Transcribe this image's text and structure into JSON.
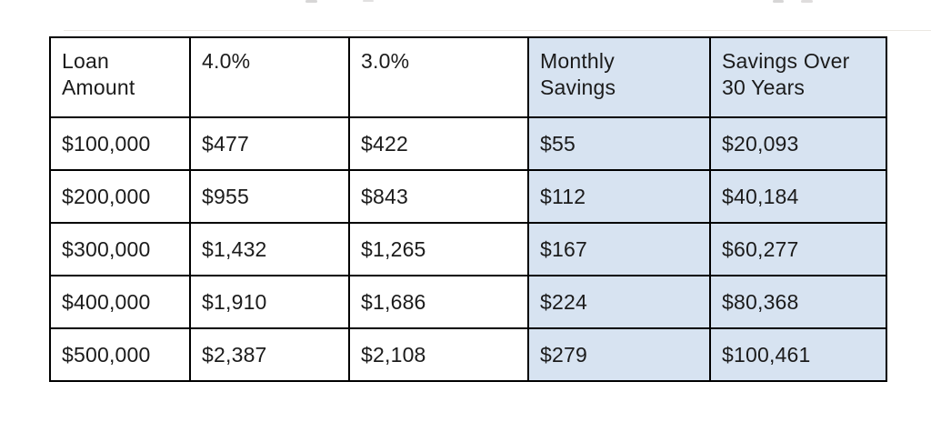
{
  "table": {
    "headers": [
      "Loan\nAmount",
      "4.0%",
      "3.0%",
      "Monthly\nSavings",
      "Savings Over\n30 Years"
    ],
    "rows": [
      [
        "$100,000",
        "$477",
        "$422",
        "$55",
        "$20,093"
      ],
      [
        "$200,000",
        "$955",
        "$843",
        "$112",
        "$40,184"
      ],
      [
        "$300,000",
        "$1,432",
        "$1,265",
        "$167",
        "$60,277"
      ],
      [
        "$400,000",
        "$1,910",
        "$1,686",
        "$224",
        "$80,368"
      ],
      [
        "$500,000",
        "$2,387",
        "$2,108",
        "$279",
        "$100,461"
      ]
    ],
    "highlight_color": "#d7e3f1",
    "border_color": "#000000",
    "text_color": "#1b1b1b"
  },
  "chart_data": {
    "type": "table",
    "title": "",
    "columns": [
      "Loan Amount",
      "4.0%",
      "3.0%",
      "Monthly Savings",
      "Savings Over 30 Years"
    ],
    "rows": [
      [
        "$100,000",
        "$477",
        "$422",
        "$55",
        "$20,093"
      ],
      [
        "$200,000",
        "$955",
        "$843",
        "$112",
        "$40,184"
      ],
      [
        "$300,000",
        "$1,432",
        "$1,265",
        "$167",
        "$60,277"
      ],
      [
        "$400,000",
        "$1,910",
        "$1,686",
        "$224",
        "$80,368"
      ],
      [
        "$500,000",
        "$2,387",
        "$2,108",
        "$279",
        "$100,461"
      ]
    ],
    "layout_hints": {
      "highlighted_columns": [
        "Monthly Savings",
        "Savings Over 30 Years"
      ],
      "grid": true
    }
  }
}
